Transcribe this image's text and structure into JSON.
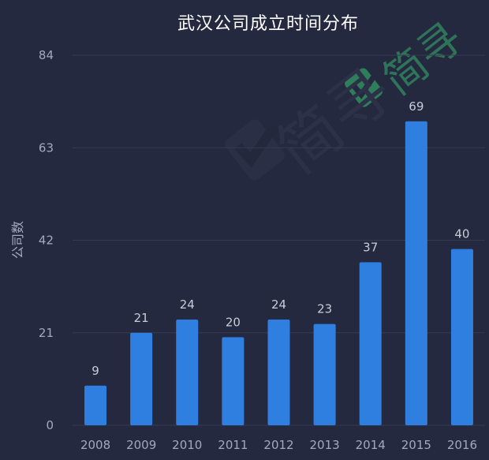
{
  "chart_data": {
    "type": "bar",
    "title": "武汉公司成立时间分布",
    "ylabel": "公司数",
    "xlabel": "",
    "categories": [
      "2008",
      "2009",
      "2010",
      "2011",
      "2012",
      "2013",
      "2014",
      "2015",
      "2016"
    ],
    "values": [
      9,
      21,
      24,
      20,
      24,
      23,
      37,
      69,
      40
    ],
    "yticks": [
      0,
      21,
      42,
      63,
      84
    ],
    "ylim": [
      0,
      84
    ],
    "grid": true,
    "bar_color": "#2f7fe0",
    "background": "#252940"
  },
  "watermark": {
    "text": "简寻",
    "color": "#2e7d5b",
    "icon": "checkmark-logo-icon"
  }
}
